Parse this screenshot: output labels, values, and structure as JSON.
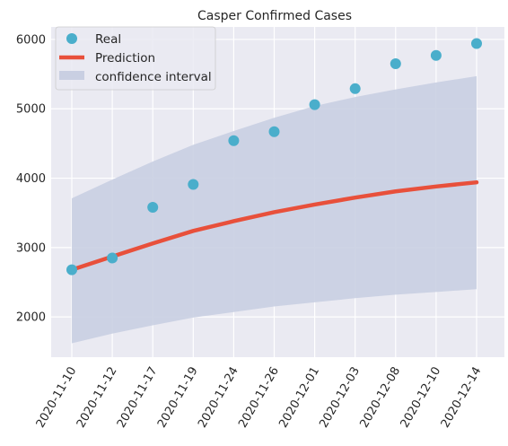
{
  "chart_data": {
    "type": "line",
    "title": "Casper Confirmed Cases",
    "xlabel": "",
    "ylabel": "",
    "categories": [
      "2020-11-10",
      "2020-11-12",
      "2020-11-17",
      "2020-11-19",
      "2020-11-24",
      "2020-11-26",
      "2020-12-01",
      "2020-12-03",
      "2020-12-08",
      "2020-12-10",
      "2020-12-14"
    ],
    "ylim": [
      1420,
      6180
    ],
    "yticks": [
      2000,
      3000,
      4000,
      5000,
      6000
    ],
    "grid": true,
    "legend_position": "top-left",
    "series": [
      {
        "name": "Real",
        "kind": "scatter",
        "color": "#4aaecb",
        "values": [
          2680,
          2850,
          3580,
          3910,
          4540,
          4670,
          5060,
          5290,
          5650,
          5770,
          5940
        ]
      },
      {
        "name": "Prediction",
        "kind": "line",
        "color": "#e8503b",
        "values": [
          2680,
          2870,
          3060,
          3240,
          3380,
          3510,
          3620,
          3720,
          3810,
          3880,
          3940
        ]
      },
      {
        "name": "confidence interval",
        "kind": "band",
        "color": "#c7cde0",
        "lower": [
          1620,
          1760,
          1880,
          1990,
          2070,
          2150,
          2210,
          2270,
          2320,
          2360,
          2400
        ],
        "upper": [
          3710,
          3980,
          4240,
          4480,
          4680,
          4870,
          5040,
          5170,
          5280,
          5380,
          5470
        ]
      }
    ]
  }
}
